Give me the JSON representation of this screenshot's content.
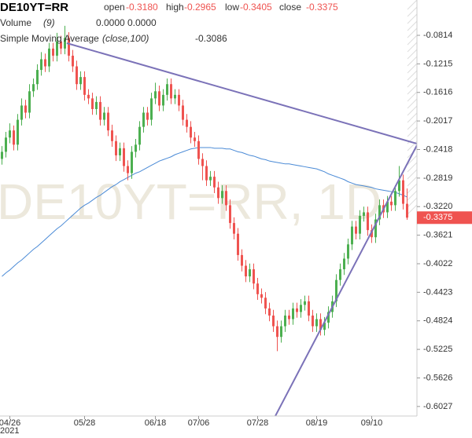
{
  "chart_data": {
    "type": "candlestick",
    "title": "DE10YT=RR",
    "watermark": "DE10YT=RR, 1D",
    "x_year_label": "2021",
    "ohlc_legend": [
      {
        "name": "open",
        "text": "-0.3180"
      },
      {
        "name": "high",
        "text": "-0.2965"
      },
      {
        "name": "low",
        "text": "-0.3405"
      },
      {
        "name": "close",
        "text": "-0.3375"
      }
    ],
    "volume_legend": {
      "name": "Volume",
      "params": "(9)",
      "texts": [
        "0.0000",
        "0.0000"
      ],
      "colors": [
        "#ef5350",
        "#4a8ad6"
      ]
    },
    "up_color": "#4caf50",
    "down_color": "#ef5350",
    "grid": false,
    "ylim": [
      -0.6161,
      -0.0318
    ],
    "yticks": [
      -0.0814,
      -0.1215,
      -0.1616,
      -0.2017,
      -0.2418,
      -0.2819,
      {
        "value": -0.322,
        "label": "-0.3220"
      },
      -0.3621,
      -0.4022,
      -0.4423,
      -0.4824,
      -0.5225,
      -0.5626,
      -0.6027
    ],
    "last_price": {
      "value": -0.3375,
      "label": "-0.3375"
    },
    "categories": [
      null,
      null,
      "04/26",
      null,
      null,
      null,
      null,
      null,
      null,
      null,
      null,
      null,
      null,
      null,
      null,
      null,
      null,
      null,
      null,
      null,
      null,
      "05/28",
      null,
      null,
      null,
      null,
      null,
      null,
      null,
      null,
      null,
      null,
      null,
      null,
      null,
      null,
      null,
      null,
      null,
      "06/18",
      null,
      null,
      null,
      null,
      null,
      null,
      null,
      null,
      null,
      null,
      "07/06",
      null,
      null,
      null,
      null,
      null,
      null,
      null,
      null,
      null,
      null,
      null,
      null,
      null,
      null,
      "07/28",
      null,
      null,
      null,
      null,
      null,
      null,
      null,
      null,
      null,
      null,
      null,
      null,
      null,
      null,
      "08/19",
      null,
      null,
      null,
      null,
      null,
      null,
      null,
      null,
      null,
      null,
      null,
      null,
      null,
      "09/10",
      null,
      null,
      null,
      null,
      null,
      null,
      null,
      null,
      null
    ],
    "open": [
      -0.255,
      -0.245,
      -0.225,
      -0.215,
      -0.235,
      -0.2,
      -0.18,
      -0.19,
      -0.16,
      -0.15,
      -0.13,
      -0.115,
      -0.125,
      -0.1,
      -0.11,
      -0.09,
      -0.1,
      -0.085,
      -0.11,
      -0.125,
      -0.15,
      -0.14,
      -0.165,
      -0.17,
      -0.185,
      -0.175,
      -0.2,
      -0.19,
      -0.215,
      -0.23,
      -0.25,
      -0.24,
      -0.265,
      -0.275,
      -0.245,
      -0.235,
      -0.21,
      -0.19,
      -0.2,
      -0.17,
      -0.16,
      -0.18,
      -0.165,
      -0.15,
      -0.17,
      -0.165,
      -0.18,
      -0.2,
      -0.21,
      -0.225,
      -0.23,
      -0.255,
      -0.265,
      -0.285,
      -0.28,
      -0.295,
      -0.31,
      -0.3,
      -0.32,
      -0.345,
      -0.36,
      -0.39,
      -0.405,
      -0.42,
      -0.41,
      -0.43,
      -0.445,
      -0.45,
      -0.465,
      -0.475,
      -0.49,
      -0.505,
      -0.49,
      -0.475,
      -0.48,
      -0.465,
      -0.47,
      -0.46,
      -0.455,
      -0.475,
      -0.49,
      -0.48,
      -0.495,
      -0.485,
      -0.47,
      -0.455,
      -0.425,
      -0.41,
      -0.395,
      -0.375,
      -0.35,
      -0.36,
      -0.335,
      -0.33,
      -0.355,
      -0.365,
      -0.34,
      -0.32,
      -0.33,
      -0.315,
      -0.32,
      -0.3,
      -0.285,
      -0.318
    ],
    "high": [
      -0.237,
      -0.217,
      -0.205,
      -0.208,
      -0.192,
      -0.17,
      -0.172,
      -0.15,
      -0.142,
      -0.122,
      -0.105,
      -0.107,
      -0.092,
      -0.092,
      -0.078,
      -0.082,
      -0.068,
      -0.077,
      -0.102,
      -0.117,
      -0.132,
      -0.132,
      -0.157,
      -0.162,
      -0.167,
      -0.167,
      -0.182,
      -0.182,
      -0.207,
      -0.222,
      -0.232,
      -0.232,
      -0.257,
      -0.237,
      -0.227,
      -0.202,
      -0.182,
      -0.182,
      -0.162,
      -0.148,
      -0.152,
      -0.157,
      -0.142,
      -0.142,
      -0.157,
      -0.157,
      -0.172,
      -0.192,
      -0.202,
      -0.217,
      -0.222,
      -0.247,
      -0.257,
      -0.272,
      -0.272,
      -0.287,
      -0.292,
      -0.292,
      -0.312,
      -0.337,
      -0.352,
      -0.382,
      -0.397,
      -0.402,
      -0.402,
      -0.422,
      -0.437,
      -0.442,
      -0.457,
      -0.467,
      -0.482,
      -0.482,
      -0.467,
      -0.467,
      -0.457,
      -0.457,
      -0.452,
      -0.447,
      -0.447,
      -0.467,
      -0.472,
      -0.472,
      -0.477,
      -0.462,
      -0.447,
      -0.417,
      -0.402,
      -0.387,
      -0.367,
      -0.342,
      -0.342,
      -0.327,
      -0.322,
      -0.322,
      -0.347,
      -0.332,
      -0.312,
      -0.312,
      -0.307,
      -0.307,
      -0.292,
      -0.265,
      -0.277,
      -0.2965
    ],
    "low": [
      -0.263,
      -0.253,
      -0.233,
      -0.243,
      -0.243,
      -0.208,
      -0.198,
      -0.198,
      -0.168,
      -0.158,
      -0.138,
      -0.133,
      -0.133,
      -0.118,
      -0.118,
      -0.108,
      -0.108,
      -0.118,
      -0.133,
      -0.158,
      -0.158,
      -0.173,
      -0.178,
      -0.193,
      -0.193,
      -0.208,
      -0.208,
      -0.223,
      -0.238,
      -0.258,
      -0.258,
      -0.273,
      -0.285,
      -0.283,
      -0.253,
      -0.243,
      -0.218,
      -0.208,
      -0.208,
      -0.178,
      -0.188,
      -0.188,
      -0.173,
      -0.178,
      -0.178,
      -0.188,
      -0.208,
      -0.218,
      -0.233,
      -0.238,
      -0.263,
      -0.285,
      -0.293,
      -0.293,
      -0.303,
      -0.318,
      -0.318,
      -0.328,
      -0.353,
      -0.368,
      -0.398,
      -0.413,
      -0.428,
      -0.428,
      -0.438,
      -0.453,
      -0.458,
      -0.473,
      -0.483,
      -0.498,
      -0.525,
      -0.513,
      -0.498,
      -0.488,
      -0.488,
      -0.478,
      -0.478,
      -0.468,
      -0.483,
      -0.498,
      -0.498,
      -0.503,
      -0.503,
      -0.493,
      -0.478,
      -0.463,
      -0.433,
      -0.418,
      -0.403,
      -0.383,
      -0.368,
      -0.368,
      -0.343,
      -0.363,
      -0.373,
      -0.373,
      -0.348,
      -0.338,
      -0.338,
      -0.328,
      -0.328,
      -0.308,
      -0.326,
      -0.3405
    ],
    "close": [
      -0.245,
      -0.225,
      -0.215,
      -0.235,
      -0.2,
      -0.18,
      -0.19,
      -0.16,
      -0.15,
      -0.13,
      -0.115,
      -0.125,
      -0.1,
      -0.11,
      -0.09,
      -0.1,
      -0.085,
      -0.11,
      -0.125,
      -0.15,
      -0.14,
      -0.165,
      -0.17,
      -0.185,
      -0.175,
      -0.2,
      -0.19,
      -0.215,
      -0.23,
      -0.25,
      -0.24,
      -0.265,
      -0.275,
      -0.245,
      -0.235,
      -0.21,
      -0.19,
      -0.2,
      -0.17,
      -0.16,
      -0.18,
      -0.165,
      -0.15,
      -0.17,
      -0.165,
      -0.18,
      -0.2,
      -0.21,
      -0.225,
      -0.23,
      -0.255,
      -0.265,
      -0.285,
      -0.28,
      -0.295,
      -0.31,
      -0.3,
      -0.32,
      -0.345,
      -0.36,
      -0.39,
      -0.405,
      -0.42,
      -0.41,
      -0.43,
      -0.445,
      -0.45,
      -0.465,
      -0.475,
      -0.49,
      -0.505,
      -0.49,
      -0.475,
      -0.48,
      -0.465,
      -0.47,
      -0.46,
      -0.455,
      -0.475,
      -0.49,
      -0.48,
      -0.495,
      -0.485,
      -0.47,
      -0.455,
      -0.425,
      -0.41,
      -0.395,
      -0.375,
      -0.35,
      -0.36,
      -0.335,
      -0.33,
      -0.355,
      -0.365,
      -0.34,
      -0.32,
      -0.33,
      -0.315,
      -0.32,
      -0.3,
      -0.285,
      -0.318,
      -0.3375
    ],
    "series": [
      {
        "name": "Simple Moving Average",
        "params": "(close,100)",
        "value_label": "-0.3086",
        "color": "#4a8ad6",
        "values": [
          -0.42,
          -0.415,
          -0.411,
          -0.406,
          -0.401,
          -0.397,
          -0.392,
          -0.387,
          -0.382,
          -0.378,
          -0.373,
          -0.368,
          -0.363,
          -0.358,
          -0.353,
          -0.349,
          -0.344,
          -0.339,
          -0.334,
          -0.329,
          -0.324,
          -0.32,
          -0.317,
          -0.313,
          -0.309,
          -0.306,
          -0.302,
          -0.298,
          -0.294,
          -0.291,
          -0.287,
          -0.284,
          -0.281,
          -0.278,
          -0.275,
          -0.273,
          -0.27,
          -0.267,
          -0.264,
          -0.261,
          -0.258,
          -0.256,
          -0.254,
          -0.252,
          -0.249,
          -0.247,
          -0.245,
          -0.243,
          -0.241,
          -0.24,
          -0.239,
          -0.239,
          -0.239,
          -0.239,
          -0.24,
          -0.24,
          -0.24,
          -0.241,
          -0.241,
          -0.243,
          -0.245,
          -0.246,
          -0.248,
          -0.25,
          -0.251,
          -0.253,
          -0.255,
          -0.256,
          -0.258,
          -0.259,
          -0.26,
          -0.261,
          -0.262,
          -0.262,
          -0.263,
          -0.264,
          -0.265,
          -0.266,
          -0.267,
          -0.268,
          -0.269,
          -0.271,
          -0.273,
          -0.276,
          -0.278,
          -0.28,
          -0.282,
          -0.284,
          -0.287,
          -0.289,
          -0.291,
          -0.292,
          -0.293,
          -0.294,
          -0.295,
          -0.297,
          -0.298,
          -0.299,
          -0.3,
          -0.301,
          -0.302,
          -0.304,
          -0.306,
          -0.3086
        ]
      }
    ]
  }
}
